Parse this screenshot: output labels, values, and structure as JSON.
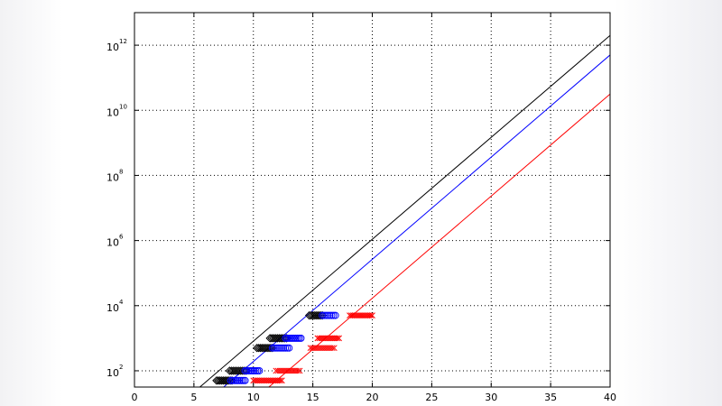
{
  "chart_data": {
    "type": "line",
    "title": "",
    "xlabel": "",
    "ylabel": "",
    "xlim": [
      0,
      40
    ],
    "ylim": [
      0.5,
      12
    ],
    "y_scale": "log10",
    "grid": true,
    "grid_style": "dotted",
    "x_ticks": [
      "0",
      "5",
      "10",
      "15",
      "20",
      "25",
      "30",
      "35",
      "40"
    ],
    "y_ticks": [
      {
        "base": "10",
        "exp": "2",
        "value": 1
      },
      {
        "base": "10",
        "exp": "4",
        "value": 3
      },
      {
        "base": "10",
        "exp": "6",
        "value": 5
      },
      {
        "base": "10",
        "exp": "8",
        "value": 7
      },
      {
        "base": "10",
        "exp": "10",
        "value": 9
      },
      {
        "base": "10",
        "exp": "12",
        "value": 11
      }
    ],
    "colors": {
      "black": "#000000",
      "blue": "#0000ff",
      "red": "#ff0000"
    },
    "series": [
      {
        "color": "black",
        "kind": "line",
        "x": [
          5.5,
          40
        ],
        "y": [
          0.5,
          11.3
        ]
      },
      {
        "color": "blue",
        "kind": "line",
        "x": [
          7.5,
          40
        ],
        "y": [
          0.5,
          10.7
        ]
      },
      {
        "color": "red",
        "kind": "line",
        "x": [
          11.3,
          40
        ],
        "y": [
          0.5,
          9.5
        ]
      },
      {
        "color": "black",
        "kind": "marker",
        "marker": "diamond",
        "clusters": [
          [
            6.9,
            8.2,
            0.7
          ],
          [
            8.0,
            9.4,
            1.0
          ],
          [
            10.3,
            11.6,
            1.7
          ],
          [
            11.4,
            12.8,
            2.0
          ],
          [
            14.7,
            15.8,
            2.7
          ]
        ]
      },
      {
        "color": "blue",
        "kind": "marker",
        "marker": "circle",
        "clusters": [
          [
            8.1,
            9.3,
            0.7
          ],
          [
            9.3,
            10.5,
            1.0
          ],
          [
            11.6,
            13.0,
            1.7
          ],
          [
            12.7,
            14.0,
            2.0
          ],
          [
            15.8,
            16.9,
            2.7
          ]
        ]
      },
      {
        "color": "red",
        "kind": "marker",
        "marker": "cross",
        "clusters": [
          [
            10.0,
            12.4,
            0.7
          ],
          [
            11.9,
            13.9,
            1.0
          ],
          [
            14.8,
            16.8,
            1.7
          ],
          [
            15.4,
            17.2,
            2.0
          ],
          [
            18.1,
            20.0,
            2.7
          ]
        ]
      }
    ]
  }
}
